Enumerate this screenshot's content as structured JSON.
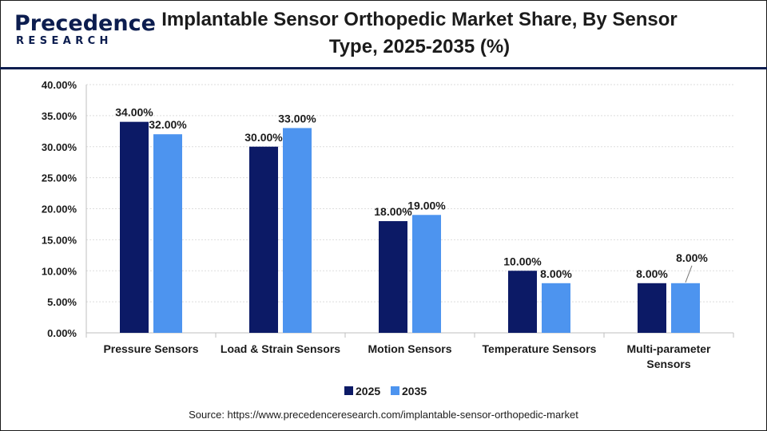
{
  "logo": {
    "word": "Precedence",
    "sub": "RESEARCH"
  },
  "title_lines": [
    "Implantable Sensor Orthopedic Market Share, By Sensor",
    "Type, 2025-2035 (%)"
  ],
  "source": "Source: https://www.precedenceresearch.com/implantable-sensor-orthopedic-market",
  "colors": {
    "series_2025": "#0c1a66",
    "series_2035": "#4d94ef",
    "brand": "#0c1d4f"
  },
  "chart_data": {
    "type": "bar",
    "title": "Implantable Sensor Orthopedic Market Share, By Sensor Type, 2025-2035 (%)",
    "categories": [
      "Pressure Sensors",
      "Load & Strain Sensors",
      "Motion Sensors",
      "Temperature Sensors",
      "Multi-parameter Sensors"
    ],
    "category_lines": [
      [
        "Pressure Sensors"
      ],
      [
        "Load & Strain Sensors"
      ],
      [
        "Motion Sensors"
      ],
      [
        "Temperature Sensors"
      ],
      [
        "Multi-parameter",
        "Sensors"
      ]
    ],
    "series": [
      {
        "name": "2025",
        "values": [
          34,
          30,
          18,
          10,
          8
        ],
        "labels": [
          "34.00%",
          "30.00%",
          "18.00%",
          "10.00%",
          "8.00%"
        ]
      },
      {
        "name": "2035",
        "values": [
          32,
          33,
          19,
          8,
          8
        ],
        "labels": [
          "32.00%",
          "33.00%",
          "19.00%",
          "8.00%",
          "8.00%"
        ]
      }
    ],
    "ylim": [
      0,
      40
    ],
    "yticks": [
      0,
      5,
      10,
      15,
      20,
      25,
      30,
      35,
      40
    ],
    "ytick_labels": [
      "0.00%",
      "5.00%",
      "10.00%",
      "15.00%",
      "20.00%",
      "25.00%",
      "30.00%",
      "35.00%",
      "40.00%"
    ],
    "grid": true,
    "legend_position": "bottom-center"
  }
}
